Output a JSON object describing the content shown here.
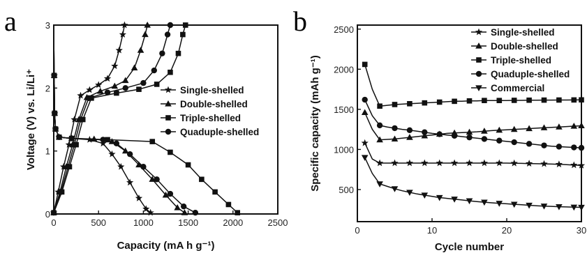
{
  "chart_data": [
    {
      "panel": "a",
      "type": "line",
      "xlabel": "Capacity (mA h g⁻¹)",
      "ylabel": "Voltage (V) vs. Li/Li⁺",
      "xlim": [
        0,
        2500
      ],
      "ylim": [
        0,
        3
      ],
      "xticks": [
        "0",
        "500",
        "1000",
        "1500",
        "2000",
        "2500"
      ],
      "yticks": [
        "0",
        "1",
        "2",
        "3"
      ],
      "legend_position": "center-right",
      "series": [
        {
          "name": "Single-shelled",
          "marker": "star",
          "discharge": [
            [
              0,
              2.9
            ],
            [
              5,
              2.2
            ],
            [
              10,
              1.6
            ],
            [
              20,
              1.35
            ],
            [
              60,
              1.22
            ],
            [
              200,
              1.2
            ],
            [
              400,
              1.18
            ],
            [
              550,
              1.12
            ],
            [
              650,
              0.95
            ],
            [
              750,
              0.75
            ],
            [
              850,
              0.5
            ],
            [
              950,
              0.25
            ],
            [
              1030,
              0.08
            ],
            [
              1080,
              0.02
            ]
          ],
          "charge": [
            [
              0,
              0.02
            ],
            [
              50,
              0.35
            ],
            [
              110,
              0.75
            ],
            [
              170,
              1.1
            ],
            [
              230,
              1.5
            ],
            [
              300,
              1.88
            ],
            [
              400,
              1.97
            ],
            [
              500,
              2.05
            ],
            [
              600,
              2.15
            ],
            [
              680,
              2.35
            ],
            [
              730,
              2.6
            ],
            [
              770,
              2.85
            ],
            [
              790,
              3.0
            ]
          ]
        },
        {
          "name": "Double-shelled",
          "marker": "triangle",
          "discharge": [
            [
              0,
              2.9
            ],
            [
              5,
              2.2
            ],
            [
              10,
              1.6
            ],
            [
              20,
              1.35
            ],
            [
              60,
              1.22
            ],
            [
              200,
              1.2
            ],
            [
              450,
              1.19
            ],
            [
              650,
              1.15
            ],
            [
              800,
              1.0
            ],
            [
              950,
              0.78
            ],
            [
              1100,
              0.55
            ],
            [
              1250,
              0.3
            ],
            [
              1380,
              0.1
            ],
            [
              1460,
              0.02
            ]
          ],
          "charge": [
            [
              0,
              0.02
            ],
            [
              70,
              0.35
            ],
            [
              140,
              0.75
            ],
            [
              210,
              1.1
            ],
            [
              280,
              1.5
            ],
            [
              370,
              1.85
            ],
            [
              520,
              1.95
            ],
            [
              680,
              2.03
            ],
            [
              800,
              2.12
            ],
            [
              900,
              2.32
            ],
            [
              970,
              2.6
            ],
            [
              1020,
              2.85
            ],
            [
              1045,
              3.0
            ]
          ]
        },
        {
          "name": "Triple-shelled",
          "marker": "square",
          "discharge": [
            [
              0,
              2.9
            ],
            [
              5,
              2.2
            ],
            [
              10,
              1.6
            ],
            [
              20,
              1.35
            ],
            [
              60,
              1.22
            ],
            [
              200,
              1.2
            ],
            [
              600,
              1.18
            ],
            [
              1100,
              1.15
            ],
            [
              1300,
              0.98
            ],
            [
              1500,
              0.78
            ],
            [
              1650,
              0.55
            ],
            [
              1800,
              0.35
            ],
            [
              1950,
              0.15
            ],
            [
              2050,
              0.02
            ]
          ],
          "charge": [
            [
              0,
              0.02
            ],
            [
              90,
              0.35
            ],
            [
              175,
              0.75
            ],
            [
              250,
              1.1
            ],
            [
              325,
              1.5
            ],
            [
              420,
              1.84
            ],
            [
              700,
              1.92
            ],
            [
              950,
              1.98
            ],
            [
              1150,
              2.06
            ],
            [
              1300,
              2.25
            ],
            [
              1390,
              2.55
            ],
            [
              1440,
              2.85
            ],
            [
              1470,
              3.0
            ]
          ]
        },
        {
          "name": "Quaduple-shelled",
          "marker": "circle",
          "discharge": [
            [
              0,
              2.9
            ],
            [
              5,
              2.2
            ],
            [
              10,
              1.6
            ],
            [
              20,
              1.35
            ],
            [
              60,
              1.22
            ],
            [
              200,
              1.2
            ],
            [
              550,
              1.18
            ],
            [
              700,
              1.12
            ],
            [
              850,
              0.95
            ],
            [
              1000,
              0.75
            ],
            [
              1150,
              0.55
            ],
            [
              1300,
              0.32
            ],
            [
              1450,
              0.12
            ],
            [
              1580,
              0.02
            ]
          ],
          "charge": [
            [
              0,
              0.02
            ],
            [
              80,
              0.35
            ],
            [
              160,
              0.75
            ],
            [
              230,
              1.1
            ],
            [
              300,
              1.5
            ],
            [
              390,
              1.84
            ],
            [
              600,
              1.93
            ],
            [
              800,
              2.0
            ],
            [
              1000,
              2.08
            ],
            [
              1120,
              2.28
            ],
            [
              1210,
              2.55
            ],
            [
              1270,
              2.85
            ],
            [
              1300,
              3.0
            ]
          ]
        }
      ]
    },
    {
      "panel": "b",
      "type": "line",
      "xlabel": "Cycle number",
      "ylabel": "Specific capacity (mAh g⁻¹)",
      "xlim": [
        0,
        30
      ],
      "ylim": [
        100,
        2550
      ],
      "xticks": [
        "0",
        "10",
        "20",
        "30"
      ],
      "yticks": [
        "500",
        "1000",
        "1500",
        "2000",
        "2500"
      ],
      "legend_position": "top-right",
      "x": [
        1,
        2,
        3,
        4,
        5,
        6,
        7,
        8,
        9,
        10,
        11,
        12,
        13,
        14,
        15,
        16,
        17,
        18,
        19,
        20,
        21,
        22,
        23,
        24,
        25,
        26,
        27,
        28,
        29,
        30
      ],
      "series": [
        {
          "name": "Single-shelled",
          "marker": "star",
          "values": [
            1080,
            880,
            830,
            830,
            830,
            830,
            830,
            830,
            830,
            830,
            830,
            830,
            830,
            830,
            830,
            830,
            830,
            830,
            830,
            830,
            828,
            826,
            824,
            822,
            820,
            818,
            815,
            810,
            805,
            800
          ]
        },
        {
          "name": "Double-shelled",
          "marker": "triangle",
          "values": [
            1460,
            1250,
            1120,
            1125,
            1130,
            1140,
            1150,
            1160,
            1170,
            1180,
            1190,
            1200,
            1205,
            1210,
            1215,
            1220,
            1228,
            1235,
            1240,
            1245,
            1250,
            1255,
            1260,
            1265,
            1270,
            1275,
            1280,
            1285,
            1290,
            1295
          ]
        },
        {
          "name": "Triple-shelled",
          "marker": "square",
          "values": [
            2060,
            1750,
            1540,
            1550,
            1560,
            1565,
            1570,
            1575,
            1580,
            1585,
            1590,
            1595,
            1600,
            1600,
            1605,
            1605,
            1610,
            1610,
            1610,
            1610,
            1612,
            1612,
            1614,
            1614,
            1615,
            1615,
            1616,
            1616,
            1617,
            1618
          ]
        },
        {
          "name": "Quaduple-shelled",
          "marker": "circle",
          "values": [
            1620,
            1420,
            1300,
            1280,
            1265,
            1250,
            1240,
            1228,
            1215,
            1200,
            1190,
            1180,
            1170,
            1160,
            1150,
            1140,
            1130,
            1120,
            1110,
            1100,
            1090,
            1080,
            1070,
            1060,
            1050,
            1040,
            1035,
            1030,
            1025,
            1020
          ]
        },
        {
          "name": "Commercial",
          "marker": "triangle-down",
          "values": [
            900,
            700,
            570,
            540,
            510,
            485,
            465,
            445,
            430,
            415,
            400,
            390,
            380,
            370,
            360,
            350,
            342,
            335,
            328,
            322,
            316,
            310,
            304,
            298,
            294,
            290,
            286,
            283,
            280,
            278
          ]
        }
      ]
    }
  ]
}
